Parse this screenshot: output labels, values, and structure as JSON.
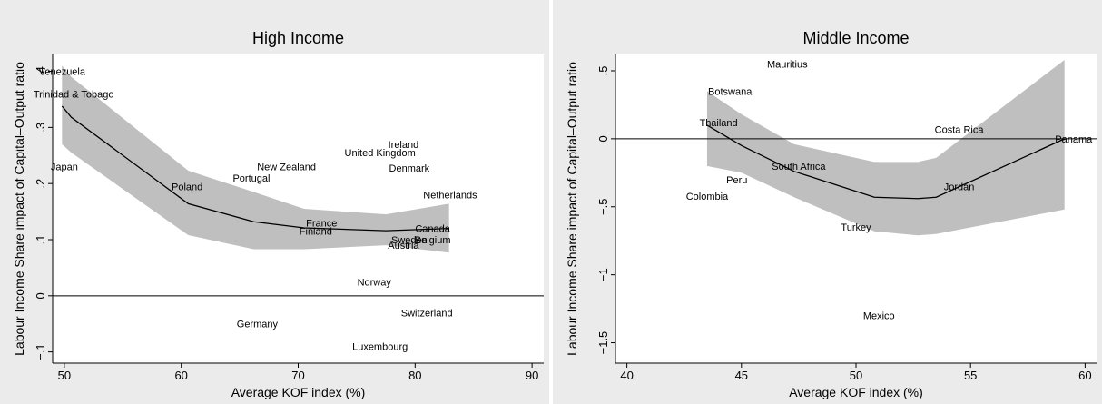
{
  "chart_data": [
    {
      "type": "line",
      "title": "High Income",
      "xlabel": "Average KOF index (%)",
      "ylabel": "Labour Income Share impact of Capital–Output ratio",
      "xlim": [
        49,
        91
      ],
      "ylim": [
        -0.12,
        0.43
      ],
      "xticks": [
        50,
        60,
        70,
        80,
        90
      ],
      "yticks": [
        -0.1,
        0,
        0.1,
        0.2,
        0.3,
        0.4
      ],
      "xtick_labels": [
        "50",
        "60",
        "70",
        "80",
        "90"
      ],
      "ytick_labels": [
        "−.1",
        "0",
        ".1",
        ".2",
        ".3",
        ".4"
      ],
      "reference_line_y": 0,
      "grid": false,
      "fit_line": {
        "x": [
          49.8,
          50.6,
          60.6,
          66.2,
          70.5,
          77.5,
          82.9
        ],
        "y": [
          0.338,
          0.318,
          0.164,
          0.132,
          0.121,
          0.116,
          0.12
        ]
      },
      "confidence_band": {
        "x": [
          49.8,
          50.6,
          60.6,
          66.2,
          70.5,
          77.5,
          82.9
        ],
        "upper": [
          0.41,
          0.39,
          0.223,
          0.185,
          0.155,
          0.145,
          0.164
        ],
        "lower": [
          0.27,
          0.255,
          0.108,
          0.083,
          0.083,
          0.09,
          0.077
        ]
      },
      "points": [
        {
          "label": "Venezuela",
          "x": 49.8,
          "y": 0.4
        },
        {
          "label": "Trinidad & Tobago",
          "x": 50.8,
          "y": 0.36
        },
        {
          "label": "Japan",
          "x": 50.0,
          "y": 0.23
        },
        {
          "label": "Poland",
          "x": 60.5,
          "y": 0.195
        },
        {
          "label": "Portugal",
          "x": 66.0,
          "y": 0.21
        },
        {
          "label": "New Zealand",
          "x": 69.0,
          "y": 0.23
        },
        {
          "label": "Ireland",
          "x": 79.0,
          "y": 0.27
        },
        {
          "label": "United Kingdom",
          "x": 77.0,
          "y": 0.255
        },
        {
          "label": "Denmark",
          "x": 79.5,
          "y": 0.228
        },
        {
          "label": "Netherlands",
          "x": 83.0,
          "y": 0.18
        },
        {
          "label": "France",
          "x": 72.0,
          "y": 0.13
        },
        {
          "label": "Finland",
          "x": 71.5,
          "y": 0.115
        },
        {
          "label": "Canada",
          "x": 81.5,
          "y": 0.12
        },
        {
          "label": "Sweden",
          "x": 79.5,
          "y": 0.1
        },
        {
          "label": "Belgium",
          "x": 81.5,
          "y": 0.1
        },
        {
          "label": "Austria",
          "x": 79.0,
          "y": 0.09
        },
        {
          "label": "Norway",
          "x": 76.5,
          "y": 0.025
        },
        {
          "label": "Switzerland",
          "x": 81.0,
          "y": -0.03
        },
        {
          "label": "Germany",
          "x": 66.5,
          "y": -0.05
        },
        {
          "label": "Luxembourg",
          "x": 77.0,
          "y": -0.09
        }
      ]
    },
    {
      "type": "line",
      "title": "Middle Income",
      "xlabel": "Average KOF index (%)",
      "ylabel": "Labour Income Share impact of Capital–Output ratio",
      "xlim": [
        39.5,
        60.5
      ],
      "ylim": [
        -1.65,
        0.62
      ],
      "xticks": [
        40,
        45,
        50,
        55,
        60
      ],
      "yticks": [
        -1.5,
        -1,
        -0.5,
        0,
        0.5
      ],
      "xtick_labels": [
        "40",
        "45",
        "50",
        "55",
        "60"
      ],
      "ytick_labels": [
        "−1.5",
        "−1",
        "−.5",
        "0",
        ".5"
      ],
      "reference_line_y": 0,
      "grid": false,
      "fit_line": {
        "x": [
          43.5,
          45.0,
          47.3,
          50.8,
          52.7,
          53.5,
          59.1
        ],
        "y": [
          0.1,
          -0.05,
          -0.24,
          -0.43,
          -0.44,
          -0.43,
          0.0
        ]
      },
      "confidence_band": {
        "x": [
          43.5,
          45.0,
          47.3,
          50.8,
          52.7,
          53.5,
          59.1
        ],
        "upper": [
          0.35,
          0.18,
          -0.04,
          -0.17,
          -0.17,
          -0.14,
          0.58
        ],
        "lower": [
          -0.2,
          -0.25,
          -0.43,
          -0.68,
          -0.71,
          -0.7,
          -0.52
        ]
      },
      "points": [
        {
          "label": "Mauritius",
          "x": 47.0,
          "y": 0.55
        },
        {
          "label": "Botswana",
          "x": 44.5,
          "y": 0.35
        },
        {
          "label": "Thailand",
          "x": 44.0,
          "y": 0.12
        },
        {
          "label": "Costa Rica",
          "x": 54.5,
          "y": 0.07
        },
        {
          "label": "Panama",
          "x": 59.5,
          "y": 0.0
        },
        {
          "label": "South Africa",
          "x": 47.5,
          "y": -0.2
        },
        {
          "label": "Peru",
          "x": 44.8,
          "y": -0.3
        },
        {
          "label": "Jordan",
          "x": 54.5,
          "y": -0.35
        },
        {
          "label": "Colombia",
          "x": 43.5,
          "y": -0.42
        },
        {
          "label": "Turkey",
          "x": 50.0,
          "y": -0.65
        },
        {
          "label": "Mexico",
          "x": 51.0,
          "y": -1.3
        }
      ]
    }
  ]
}
